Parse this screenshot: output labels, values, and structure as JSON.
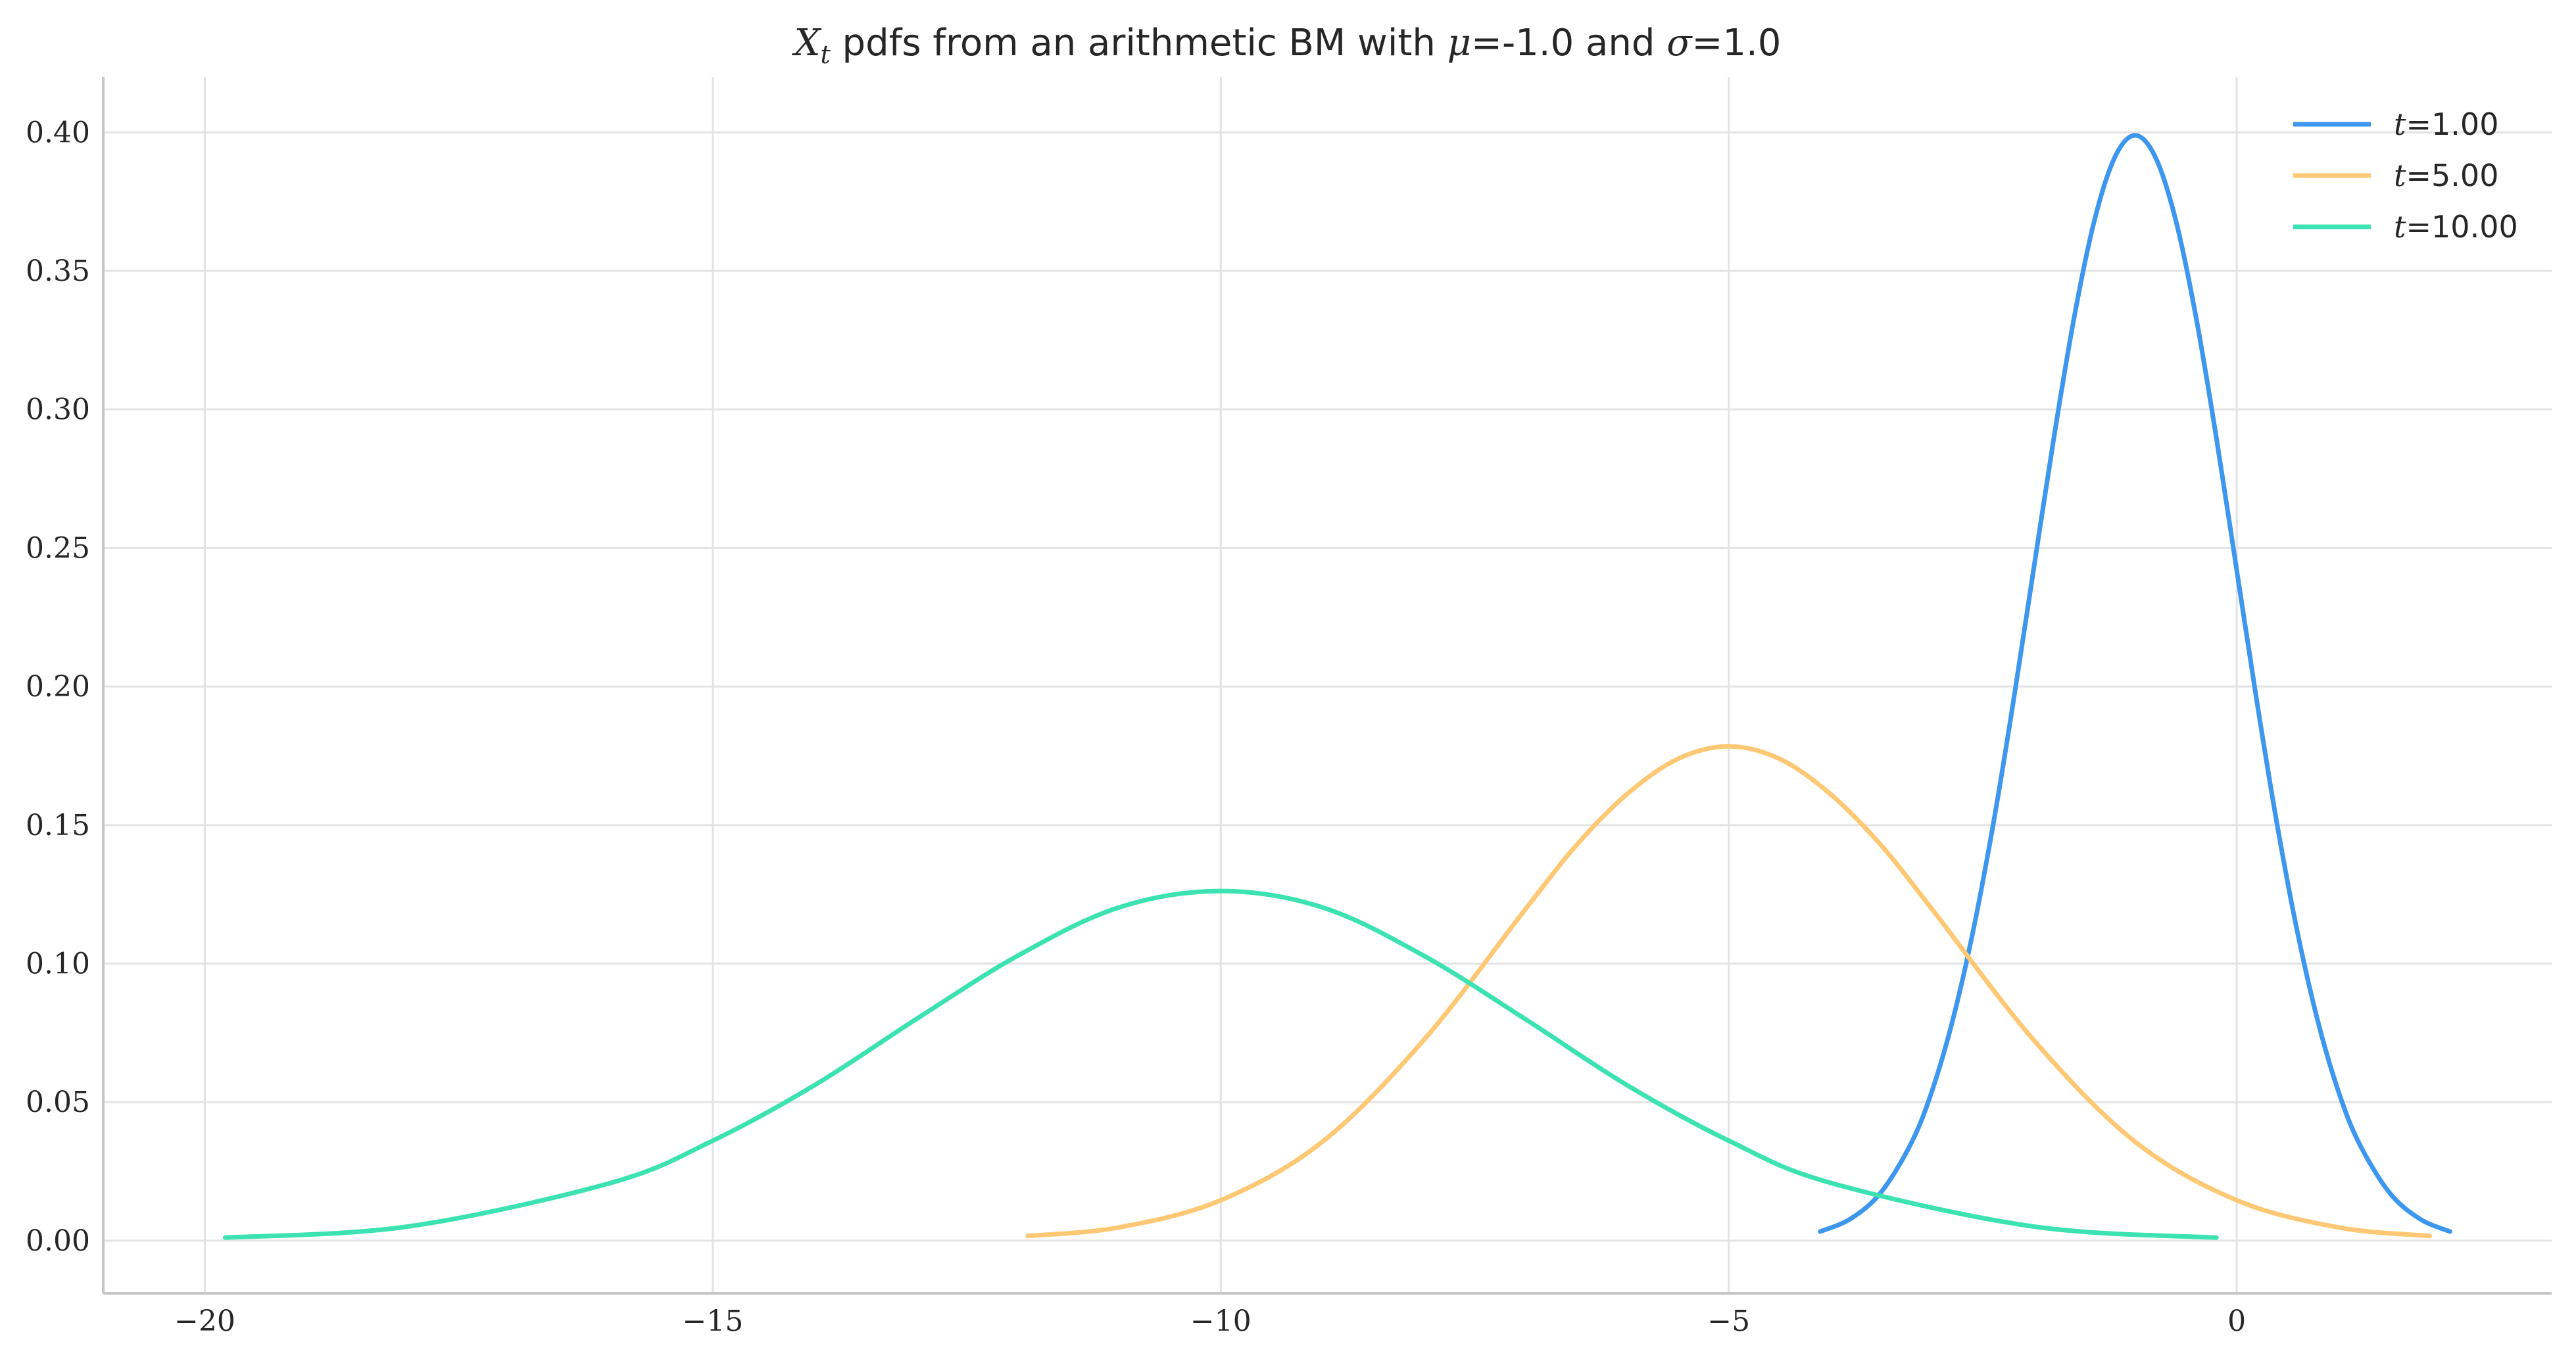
{
  "chart_data": {
    "type": "line",
    "title": {
      "prefix_math": "X",
      "prefix_sub": "t",
      "text_before_mu": " pdfs from an arithmetic BM with ",
      "mu_symbol": "μ",
      "mu_value": "=-1.0",
      "text_and": " and ",
      "sigma_symbol": "σ",
      "sigma_value": "=1.0"
    },
    "xlabel": "",
    "ylabel": "",
    "xlim": [
      -21,
      3.1
    ],
    "ylim": [
      -0.019,
      0.42
    ],
    "x_ticks": [
      -20,
      -15,
      -10,
      -5,
      0
    ],
    "x_tick_labels": [
      "−20",
      "−15",
      "−10",
      "−5",
      "0"
    ],
    "y_ticks": [
      0.0,
      0.05,
      0.1,
      0.15,
      0.2,
      0.25,
      0.3,
      0.35,
      0.4
    ],
    "y_tick_labels": [
      "0.00",
      "0.05",
      "0.10",
      "0.15",
      "0.20",
      "0.25",
      "0.30",
      "0.35",
      "0.40"
    ],
    "grid": true,
    "legend_position": "top-right",
    "series": [
      {
        "name": "t",
        "name_value": "=1.00",
        "color": "#3d97ee",
        "x": [
          -4.1,
          -3.8,
          -3.5,
          -3.2,
          -3.0,
          -2.8,
          -2.6,
          -2.4,
          -2.2,
          -2.0,
          -1.8,
          -1.6,
          -1.4,
          -1.2,
          -1.0,
          -0.8,
          -0.6,
          -0.4,
          -0.2,
          0.0,
          0.2,
          0.4,
          0.6,
          0.8,
          1.0,
          1.2,
          1.5,
          1.8,
          2.1
        ],
        "y": [
          0.0033,
          0.0079,
          0.0175,
          0.0355,
          0.054,
          0.079,
          0.1109,
          0.1497,
          0.1942,
          0.242,
          0.2897,
          0.3332,
          0.3683,
          0.391,
          0.3989,
          0.391,
          0.3683,
          0.3332,
          0.2897,
          0.242,
          0.1942,
          0.1497,
          0.1109,
          0.079,
          0.054,
          0.0355,
          0.0175,
          0.0079,
          0.0033
        ]
      },
      {
        "name": "t",
        "name_value": "=5.00",
        "color": "#ffc874",
        "x": [
          -11.9,
          -11.0,
          -10.0,
          -9.0,
          -8.0,
          -7.0,
          -6.5,
          -6.0,
          -5.5,
          -5.0,
          -4.5,
          -4.0,
          -3.5,
          -3.0,
          -2.0,
          -1.0,
          0.0,
          1.0,
          1.9
        ],
        "y": [
          0.0017,
          0.0048,
          0.0146,
          0.0357,
          0.0725,
          0.1197,
          0.1427,
          0.1612,
          0.1739,
          0.1784,
          0.1739,
          0.1612,
          0.1427,
          0.1197,
          0.0725,
          0.0357,
          0.0146,
          0.0048,
          0.0017
        ]
      },
      {
        "name": "t",
        "name_value": "=10.00",
        "color": "#3de2b2",
        "x": [
          -19.8,
          -18.0,
          -16.0,
          -15.0,
          -14.0,
          -13.0,
          -12.0,
          -11.0,
          -10.0,
          -9.0,
          -8.0,
          -7.0,
          -6.0,
          -5.0,
          -4.0,
          -2.0,
          -0.2
        ],
        "y": [
          0.0011,
          0.0051,
          0.0209,
          0.0361,
          0.0561,
          0.0799,
          0.1028,
          0.1203,
          0.1262,
          0.1203,
          0.1028,
          0.0799,
          0.0561,
          0.0361,
          0.0209,
          0.0051,
          0.0011
        ]
      }
    ]
  }
}
